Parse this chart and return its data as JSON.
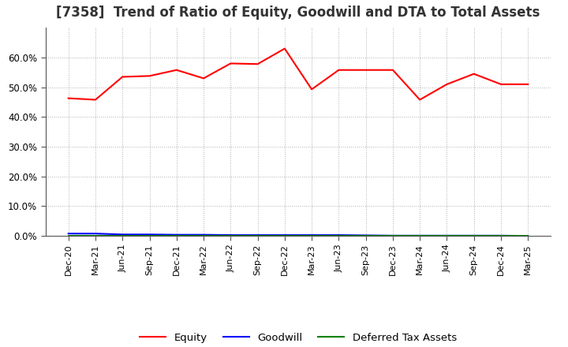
{
  "title": "[7358]  Trend of Ratio of Equity, Goodwill and DTA to Total Assets",
  "x_labels": [
    "Dec-20",
    "Mar-21",
    "Jun-21",
    "Sep-21",
    "Dec-21",
    "Mar-22",
    "Jun-22",
    "Sep-22",
    "Dec-22",
    "Mar-23",
    "Jun-23",
    "Sep-23",
    "Dec-23",
    "Mar-24",
    "Jun-24",
    "Sep-24",
    "Dec-24",
    "Mar-25"
  ],
  "equity": [
    0.463,
    0.458,
    0.535,
    0.538,
    0.558,
    0.53,
    0.58,
    0.578,
    0.63,
    0.493,
    0.558,
    0.558,
    0.558,
    0.458,
    0.51,
    0.545,
    0.51,
    0.51
  ],
  "goodwill": [
    0.008,
    0.008,
    0.005,
    0.005,
    0.004,
    0.004,
    0.003,
    0.003,
    0.003,
    0.003,
    0.003,
    0.002,
    0.001,
    0.001,
    0.001,
    0.001,
    0.001,
    0.0
  ],
  "dta": [
    0.0,
    0.0,
    0.0,
    0.0,
    0.0,
    0.0,
    0.0,
    0.0,
    0.0,
    0.0,
    0.0,
    0.0,
    0.0,
    0.0,
    0.0,
    0.0,
    0.0,
    0.0
  ],
  "equity_color": "#ff0000",
  "goodwill_color": "#0000ff",
  "dta_color": "#008000",
  "background_color": "#ffffff",
  "grid_color": "#b0b0b0",
  "ylim": [
    0.0,
    0.7
  ],
  "yticks": [
    0.0,
    0.1,
    0.2,
    0.3,
    0.4,
    0.5,
    0.6
  ],
  "title_fontsize": 12,
  "legend_labels": [
    "Equity",
    "Goodwill",
    "Deferred Tax Assets"
  ]
}
